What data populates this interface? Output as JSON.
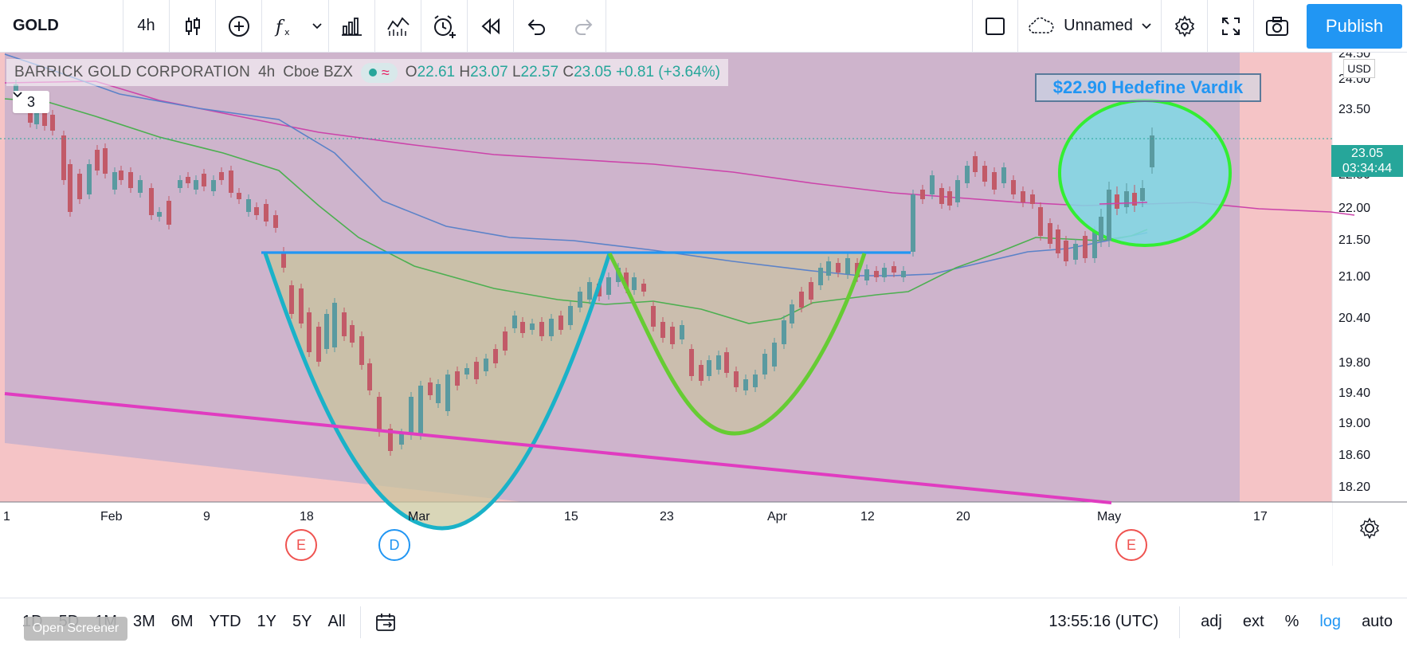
{
  "toolbar": {
    "symbol": "GOLD",
    "interval": "4h",
    "icons": [
      "candles-icon",
      "compare-plus-icon",
      "indicators-fx-icon",
      "chevron-down-icon",
      "financials-icon",
      "templates-icon",
      "alert-icon",
      "replay-icon",
      "undo-icon",
      "redo-icon"
    ],
    "layout_name": "Unnamed",
    "publish_label": "Publish"
  },
  "legend": {
    "title": "BARRICK GOLD CORPORATION",
    "interval": "4h",
    "exchange": "Cboe BZX",
    "open_label": "O",
    "open": "22.61",
    "high_label": "H",
    "high": "23.07",
    "low_label": "L",
    "low": "22.57",
    "close_label": "C",
    "close": "23.05",
    "change": "+0.81 (+3.64%)",
    "collapse_count": "3"
  },
  "annotation": {
    "text": "$22.90 Hedefine Vardık"
  },
  "price_scale": {
    "currency": "USD",
    "labels": [
      "24.50",
      "24.00",
      "23.50",
      "22.50",
      "22.00",
      "21.50",
      "21.00",
      "20.40",
      "19.80",
      "19.40",
      "19.00",
      "18.60",
      "18.20"
    ],
    "last_price": "23.05",
    "countdown": "03:34:44"
  },
  "time_scale": {
    "labels": [
      "1",
      "Feb",
      "9",
      "18",
      "Mar",
      "15",
      "23",
      "Apr",
      "12",
      "20",
      "May",
      "17"
    ]
  },
  "events": {
    "earnings": "E",
    "dividend": "D"
  },
  "colors": {
    "background_zone": "#ceb4cc",
    "pink_zone": "#f5c4c6",
    "up": "#5a9aa0",
    "down": "#c25a68",
    "ma_pink": "#cc44aa",
    "ma_blue": "#5b82c8",
    "ma_green": "#4caf50",
    "neckline": "#2196f3",
    "cup_outline": "#1ab2c8",
    "handle_outline": "#66cc33",
    "trendline": "#e03cc0",
    "highlight_circle": "#33ee33"
  },
  "bottom": {
    "ranges": [
      "1D",
      "5D",
      "1M",
      "3M",
      "6M",
      "YTD",
      "1Y",
      "5Y",
      "All"
    ],
    "clock": "13:55:16 (UTC)",
    "adj": "adj",
    "ext": "ext",
    "percent": "%",
    "log": "log",
    "auto": "auto",
    "screener": "Open Screener"
  }
}
